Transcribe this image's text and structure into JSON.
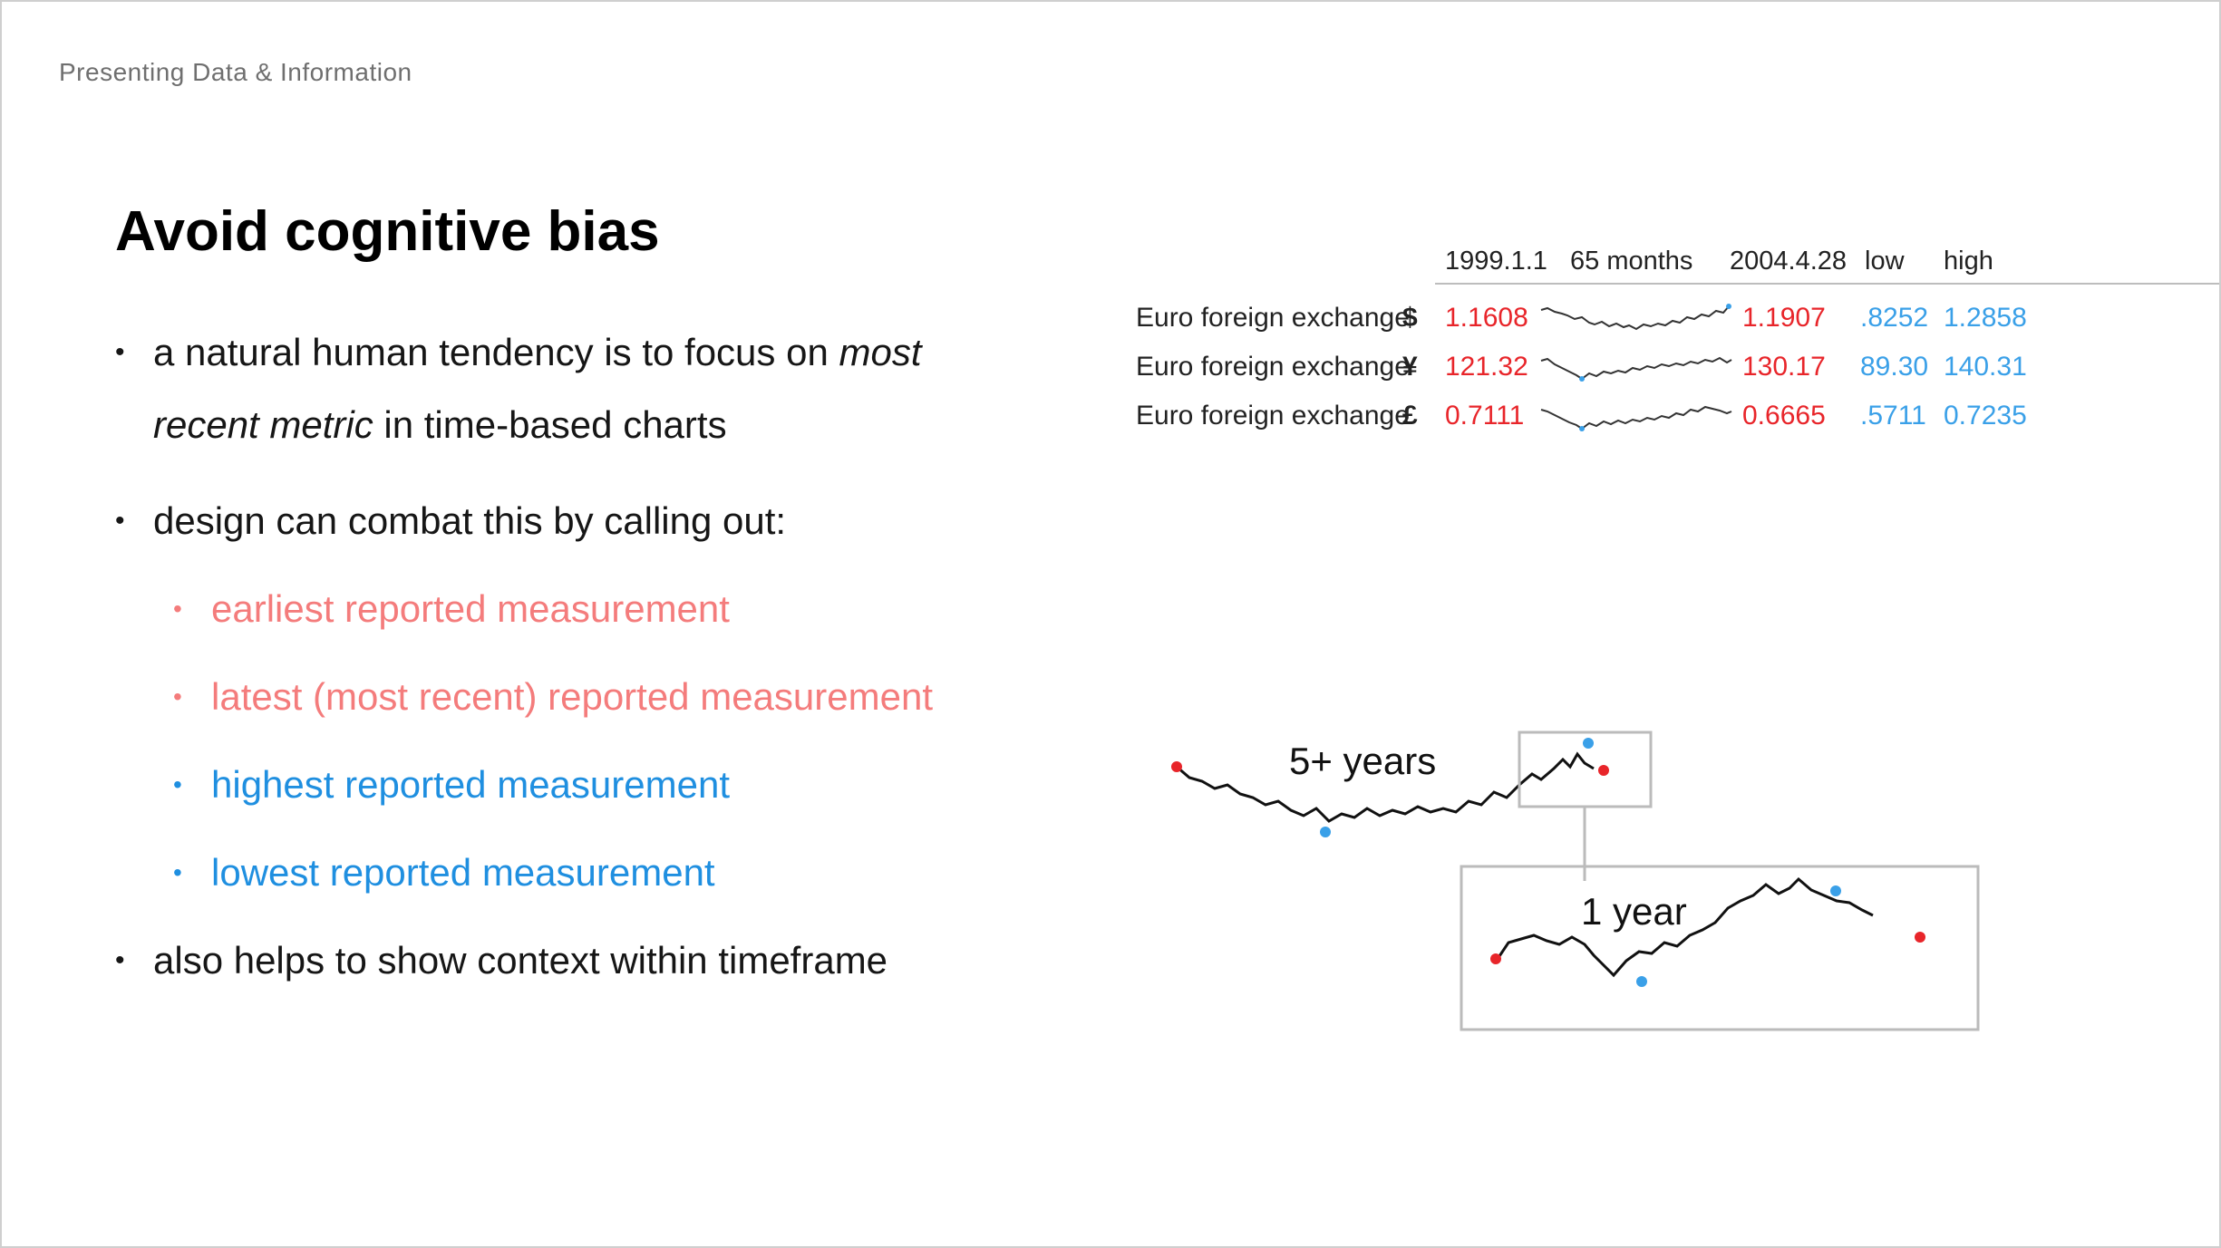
{
  "header": {
    "label": "Presenting Data & Information"
  },
  "slide": {
    "title": "Avoid cognitive bias"
  },
  "bullets": {
    "b1_pre": "a natural human tendency is to focus on ",
    "b1_em1": "most",
    "b1_em2": "recent metric",
    "b1_post": " in time-based charts",
    "b2": "design can combat this by calling out:",
    "sub1": "earliest reported measurement",
    "sub2": "latest (most recent) reported measurement",
    "sub3": "highest reported measurement",
    "sub4": "lowest reported measurement",
    "b3": "also helps to show context within timeframe",
    "dot": "•"
  },
  "fx_table": {
    "headers": {
      "start": "1999.1.1",
      "span": "65 months",
      "end": "2004.4.28",
      "low": "low",
      "high": "high"
    },
    "rows": [
      {
        "label": "Euro foreign exchange",
        "currency": "$",
        "start": "1.1608",
        "end": "1.1907",
        "low": ".8252",
        "high": "1.2858"
      },
      {
        "label": "Euro foreign exchange",
        "currency": "¥",
        "start": "121.32",
        "end": "130.17",
        "low": "89.30",
        "high": "140.31"
      },
      {
        "label": "Euro foreign exchange",
        "currency": "£",
        "start": "0.7111",
        "end": "0.6665",
        "low": ".5711",
        "high": "0.7235"
      }
    ]
  },
  "zoom_figure": {
    "label_long": "5+ years",
    "label_short": "1 year"
  },
  "colors": {
    "accent_red": "#f47c7c",
    "accent_blue": "#1f8fe0",
    "mark_red": "#e8252a",
    "mark_blue": "#3aa0e8"
  }
}
